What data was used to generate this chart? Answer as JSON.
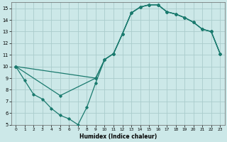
{
  "xlabel": "Humidex (Indice chaleur)",
  "bg_color": "#cce8e8",
  "grid_color": "#aacccc",
  "line_color": "#1a7a6e",
  "xlim": [
    -0.5,
    23.5
  ],
  "ylim": [
    5,
    15.5
  ],
  "xticks": [
    0,
    1,
    2,
    3,
    4,
    5,
    6,
    7,
    8,
    9,
    10,
    11,
    12,
    13,
    14,
    15,
    16,
    17,
    18,
    19,
    20,
    21,
    22,
    23
  ],
  "yticks": [
    5,
    6,
    7,
    8,
    9,
    10,
    11,
    12,
    13,
    14,
    15
  ],
  "line1_x": [
    0,
    1,
    2,
    3,
    4,
    5,
    6,
    7,
    8,
    9,
    10,
    11,
    12,
    13,
    14,
    15,
    16,
    17,
    18,
    19,
    20,
    21,
    22,
    23
  ],
  "line1_y": [
    10,
    8.8,
    7.6,
    7.2,
    6.4,
    5.8,
    5.5,
    5.0,
    6.5,
    8.6,
    10.6,
    11.1,
    12.8,
    14.6,
    15.1,
    15.3,
    15.3,
    14.7,
    14.5,
    14.2,
    13.8,
    13.2,
    13.0,
    11.1
  ],
  "line2_x": [
    0,
    9,
    10,
    11,
    12,
    13,
    14,
    15,
    16,
    17,
    18,
    19,
    20,
    21,
    22,
    23
  ],
  "line2_y": [
    10,
    9.0,
    10.6,
    11.1,
    12.8,
    14.6,
    15.1,
    15.3,
    15.3,
    14.7,
    14.5,
    14.2,
    13.8,
    13.2,
    13.0,
    11.1
  ],
  "line3_x": [
    0,
    5,
    9,
    10,
    11,
    12,
    13,
    14,
    15,
    16,
    17,
    18,
    19,
    20,
    21,
    22,
    23
  ],
  "line3_y": [
    10,
    7.5,
    9.0,
    10.6,
    11.1,
    12.8,
    14.6,
    15.1,
    15.3,
    15.3,
    14.7,
    14.5,
    14.2,
    13.8,
    13.2,
    13.0,
    11.1
  ]
}
